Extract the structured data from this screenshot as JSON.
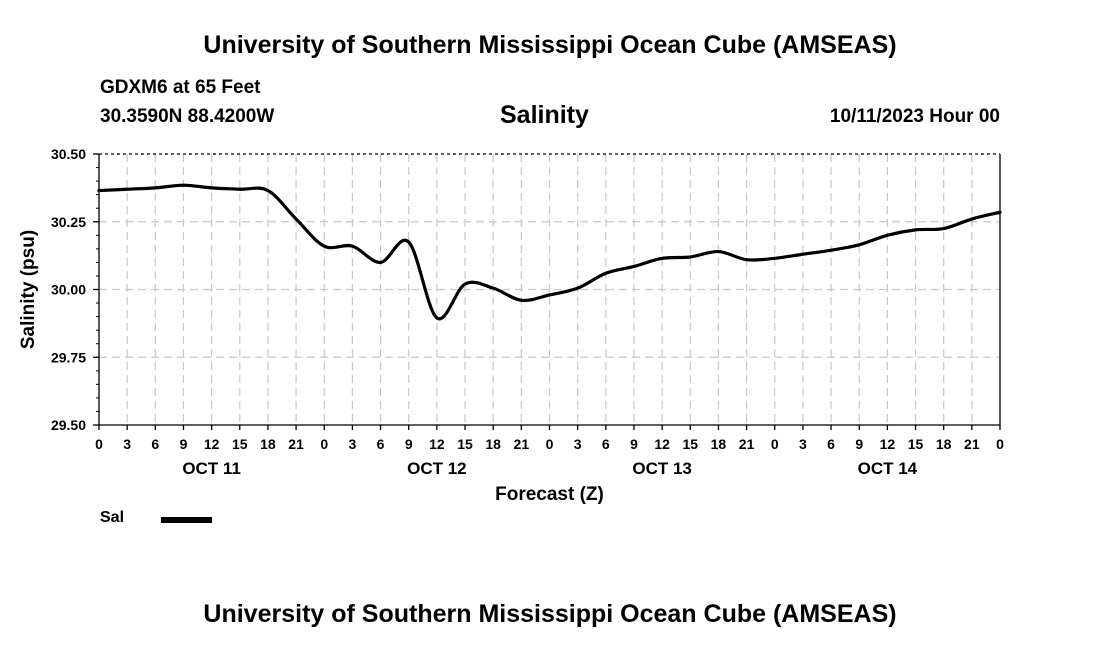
{
  "header": {
    "title": "University of Southern Mississippi Ocean Cube (AMSEAS)",
    "station": "GDXM6 at 65 Feet",
    "coords": "30.3590N  88.4200W",
    "plot_title": "Salinity",
    "date": "10/11/2023 Hour 00"
  },
  "footer": {
    "title": "University of Southern Mississippi Ocean Cube (AMSEAS)"
  },
  "legend": {
    "label": "Sal",
    "color": "#000000"
  },
  "chart_data": {
    "type": "line",
    "title": "Salinity",
    "xlabel": "Forecast (Z)",
    "ylabel": "Salinity (psu)",
    "ylim": [
      29.5,
      30.5
    ],
    "yticks": [
      "29.50",
      "29.75",
      "30.00",
      "30.25",
      "30.50"
    ],
    "xlim": [
      0,
      96
    ],
    "x_tick_step_hours": 3,
    "x_tick_labels": [
      "0",
      "3",
      "6",
      "9",
      "12",
      "15",
      "18",
      "21",
      "0",
      "3",
      "6",
      "9",
      "12",
      "15",
      "18",
      "21",
      "0",
      "3",
      "6",
      "9",
      "12",
      "15",
      "18",
      "21",
      "0",
      "3",
      "6",
      "9",
      "12",
      "15",
      "18",
      "21",
      "0"
    ],
    "day_labels": [
      {
        "label": "OCT 11",
        "hour": 12
      },
      {
        "label": "OCT 12",
        "hour": 36
      },
      {
        "label": "OCT 13",
        "hour": 60
      },
      {
        "label": "OCT 14",
        "hour": 84
      }
    ],
    "grid": true,
    "series": [
      {
        "name": "Sal",
        "color": "#000000",
        "x": [
          0,
          3,
          6,
          9,
          12,
          15,
          18,
          21,
          24,
          27,
          30,
          33,
          36,
          39,
          42,
          45,
          48,
          51,
          54,
          57,
          60,
          63,
          66,
          69,
          72,
          75,
          78,
          81,
          84,
          87,
          90,
          93,
          96
        ],
        "values": [
          30.365,
          30.37,
          30.375,
          30.385,
          30.375,
          30.37,
          30.365,
          30.26,
          30.16,
          30.16,
          30.1,
          30.175,
          29.895,
          30.02,
          30.005,
          29.96,
          29.98,
          30.005,
          30.06,
          30.085,
          30.115,
          30.12,
          30.14,
          30.11,
          30.115,
          30.13,
          30.145,
          30.165,
          30.2,
          30.22,
          30.225,
          30.26,
          30.285
        ]
      }
    ]
  }
}
